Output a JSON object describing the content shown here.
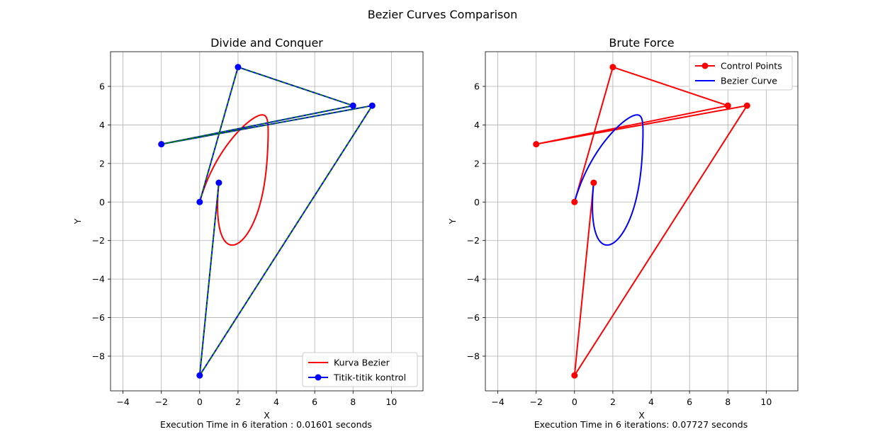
{
  "figure": {
    "suptitle": "Bezier Curves Comparison"
  },
  "chart_data": [
    {
      "type": "line",
      "title": "Divide and Conquer",
      "xlabel": "X",
      "ylabel": "Y",
      "footer": "Execution Time in 6 iteration : 0.01601 seconds",
      "xlim": [
        -4.65,
        11.65
      ],
      "ylim": [
        -9.8,
        7.8
      ],
      "xticks": [
        -4,
        -2,
        0,
        2,
        4,
        6,
        8,
        10
      ],
      "yticks": [
        -8,
        -6,
        -4,
        -2,
        0,
        2,
        4,
        6
      ],
      "grid": true,
      "legend_position": "lower-right",
      "legend": [
        {
          "label": "Kurva Bezier",
          "color": "#ff0000",
          "marker": false
        },
        {
          "label": "Titik-titik kontrol",
          "color": "#0000ff",
          "marker": true
        }
      ],
      "control_points": {
        "x": [
          0,
          2,
          8,
          -2,
          9,
          0,
          1
        ],
        "y": [
          0,
          7,
          5,
          3,
          5,
          -9,
          1
        ],
        "line_color": "#0000ff",
        "marker_color": "#0000ff",
        "overlay_color": "#008000",
        "overlay_dashed": true
      },
      "curve": {
        "color": "#ff0000"
      }
    },
    {
      "type": "line",
      "title": "Brute Force",
      "xlabel": "X",
      "ylabel": "Y",
      "footer": "Execution Time in 6 iterations: 0.07727 seconds",
      "xlim": [
        -4.65,
        11.65
      ],
      "ylim": [
        -9.8,
        7.8
      ],
      "xticks": [
        -4,
        -2,
        0,
        2,
        4,
        6,
        8,
        10
      ],
      "yticks": [
        -8,
        -6,
        -4,
        -2,
        0,
        2,
        4,
        6
      ],
      "grid": true,
      "legend_position": "upper-right",
      "legend": [
        {
          "label": "Control Points",
          "color": "#ff0000",
          "marker": true
        },
        {
          "label": "Bezier Curve",
          "color": "#0000ff",
          "marker": false
        }
      ],
      "control_points": {
        "x": [
          0,
          2,
          8,
          -2,
          9,
          0,
          1
        ],
        "y": [
          0,
          7,
          5,
          3,
          5,
          -9,
          1
        ],
        "line_color": "#ff0000",
        "marker_color": "#ff0000",
        "overlay_color": null,
        "overlay_dashed": false
      },
      "curve": {
        "color": "#0000ff"
      }
    }
  ]
}
